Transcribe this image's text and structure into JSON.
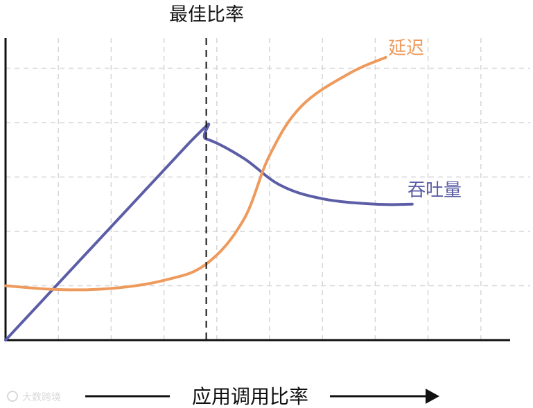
{
  "chart_data": {
    "type": "line",
    "xlabel": "应用调用比率",
    "ylabel": "",
    "x_range": [
      0,
      10
    ],
    "y_range": [
      0,
      6
    ],
    "grid": true,
    "annotation": {
      "label": "最佳比率",
      "x": 3.8
    },
    "series": [
      {
        "name": "吞吐量",
        "color": "#5b5ea6",
        "x": [
          0,
          3.5,
          3.8,
          4.5,
          5.2,
          6.0,
          7.0,
          7.7
        ],
        "y": [
          0,
          3.65,
          3.7,
          3.35,
          2.85,
          2.6,
          2.5,
          2.5
        ]
      },
      {
        "name": "延迟",
        "color": "#ee9a5c",
        "x": [
          0,
          1.0,
          2.0,
          3.0,
          3.8,
          4.5,
          5.0,
          5.6,
          6.5,
          7.2
        ],
        "y": [
          1.0,
          0.93,
          0.95,
          1.1,
          1.4,
          2.2,
          3.4,
          4.3,
          4.9,
          5.2
        ]
      }
    ]
  },
  "watermark": "大数跨境"
}
